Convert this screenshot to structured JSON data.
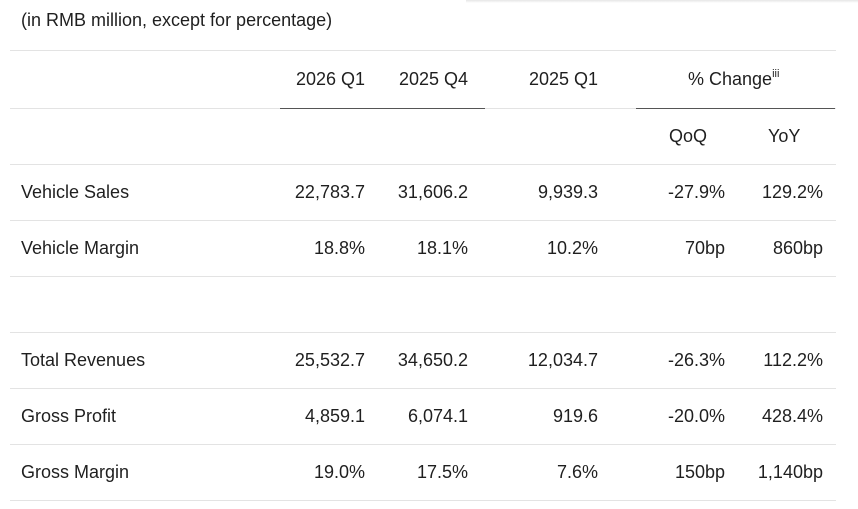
{
  "caption": "(in RMB million, except for percentage)",
  "headers": {
    "col1": "2026 Q1",
    "col2": "2025 Q4",
    "col3": "2025 Q1",
    "change": "% Change",
    "change_note": "iii",
    "qoq": "QoQ",
    "yoy": "YoY"
  },
  "rows": [
    {
      "label": "Vehicle Sales",
      "v1": "22,783.7",
      "v2": "31,606.2",
      "v3": "9,939.3",
      "qoq": "-27.9%",
      "yoy": "129.2%"
    },
    {
      "label": "Vehicle Margin",
      "v1": "18.8%",
      "v2": "18.1%",
      "v3": "10.2%",
      "qoq": "70bp",
      "yoy": "860bp"
    },
    {
      "label": "Total Revenues",
      "v1": "25,532.7",
      "v2": "34,650.2",
      "v3": "12,034.7",
      "qoq": "-26.3%",
      "yoy": "112.2%"
    },
    {
      "label": "Gross Profit",
      "v1": "4,859.1",
      "v2": "6,074.1",
      "v3": "919.6",
      "qoq": "-20.0%",
      "yoy": "428.4%"
    },
    {
      "label": "Gross Margin",
      "v1": "19.0%",
      "v2": "17.5%",
      "v3": "7.6%",
      "qoq": "150bp",
      "yoy": "1,140bp"
    }
  ]
}
